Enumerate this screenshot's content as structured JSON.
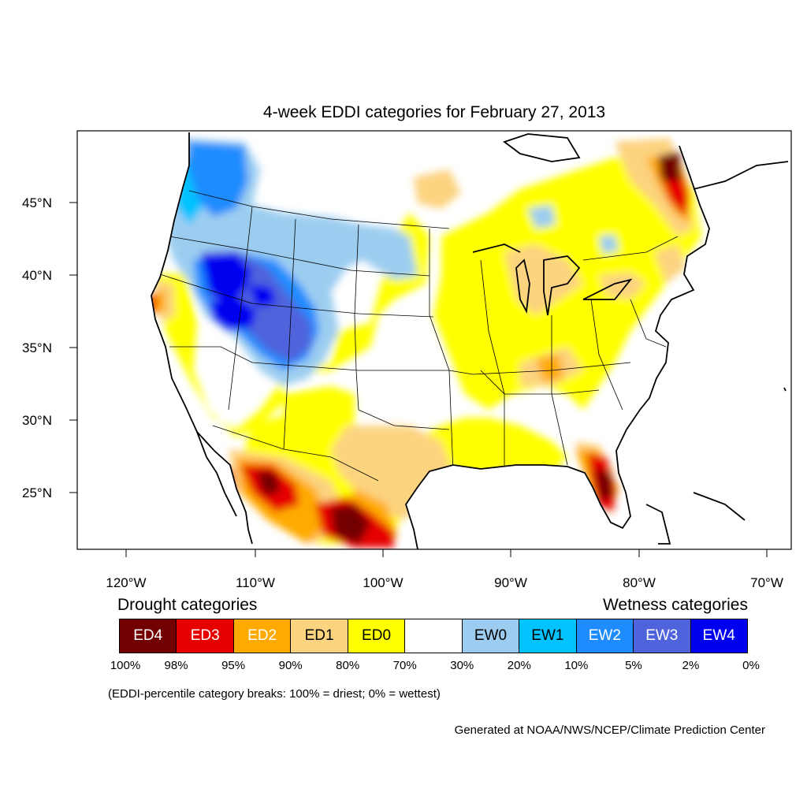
{
  "title": "4-week EDDI categories for February 27, 2013",
  "axes": {
    "lat_ticks": [
      "45°N",
      "40°N",
      "35°N",
      "30°N",
      "25°N"
    ],
    "lon_ticks": [
      "120°W",
      "110°W",
      "100°W",
      "90°W",
      "80°W",
      "70°W"
    ]
  },
  "legend": {
    "drought_title": "Drought categories",
    "wetness_title": "Wetness categories",
    "categories": [
      {
        "label": "ED4",
        "color": "#730000",
        "text_color": "#ffffff"
      },
      {
        "label": "ED3",
        "color": "#e60000",
        "text_color": "#ffffff"
      },
      {
        "label": "ED2",
        "color": "#ffaa00",
        "text_color": "#ffffff"
      },
      {
        "label": "ED1",
        "color": "#fcd37f",
        "text_color": "#000000"
      },
      {
        "label": "ED0",
        "color": "#ffff00",
        "text_color": "#000000"
      },
      {
        "label": "",
        "color": "#ffffff",
        "text_color": "#000000"
      },
      {
        "label": "EW0",
        "color": "#9ccdf0",
        "text_color": "#000000"
      },
      {
        "label": "EW1",
        "color": "#00c3ff",
        "text_color": "#000000"
      },
      {
        "label": "EW2",
        "color": "#1e8cff",
        "text_color": "#ffffff"
      },
      {
        "label": "EW3",
        "color": "#4f64dc",
        "text_color": "#ffffff"
      },
      {
        "label": "EW4",
        "color": "#0000f0",
        "text_color": "#ffffff"
      }
    ],
    "breaks": [
      "100%",
      "98%",
      "95%",
      "90%",
      "80%",
      "70%",
      "30%",
      "20%",
      "10%",
      "5%",
      "2%",
      "0%"
    ]
  },
  "note": "(EDDI-percentile category breaks: 100% = driest; 0% = wettest)",
  "credit": "Generated at NOAA/NWS/NCEP/Climate Prediction Center"
}
